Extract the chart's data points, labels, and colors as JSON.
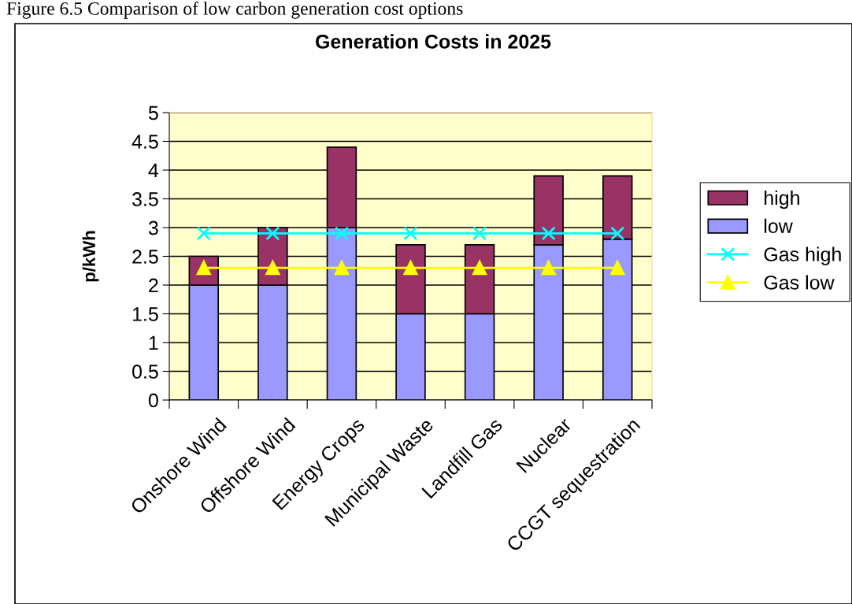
{
  "chart_data": {
    "type": "bar",
    "title": "Generation Costs in 2025",
    "ylabel": "p/kWh",
    "annotations": [
      "Figure 6.5 Comparison of low carbon generation cost options"
    ],
    "categories": [
      "Onshore Wind",
      "Offshore Wind",
      "Energy Crops",
      "Municipal Waste",
      "Landfill Gas",
      "Nuclear",
      "CCGT sequestration"
    ],
    "stacked": true,
    "series": [
      {
        "name": "low",
        "color": "#9999ff",
        "values": [
          2,
          2,
          3,
          1.5,
          1.5,
          2.7,
          2.8
        ]
      },
      {
        "name": "high",
        "color": "#993366",
        "values": [
          0.5,
          1.0,
          1.4,
          1.2,
          1.2,
          1.2,
          1.1
        ]
      },
      {
        "name": "Gas high",
        "type": "line",
        "color": "#00ffff",
        "marker": "cross",
        "values": [
          2.9,
          2.9,
          2.9,
          2.9,
          2.9,
          2.9,
          2.9
        ]
      },
      {
        "name": "Gas low",
        "type": "line",
        "color": "#ffff00",
        "marker": "triangle",
        "values": [
          2.3,
          2.3,
          2.3,
          2.3,
          2.3,
          2.3,
          2.3
        ]
      }
    ],
    "ylim": [
      0,
      5
    ],
    "yticks": [
      0,
      0.5,
      1,
      1.5,
      2,
      2.5,
      3,
      3.5,
      4,
      4.5,
      5
    ],
    "grid": "y",
    "legend": "right"
  }
}
